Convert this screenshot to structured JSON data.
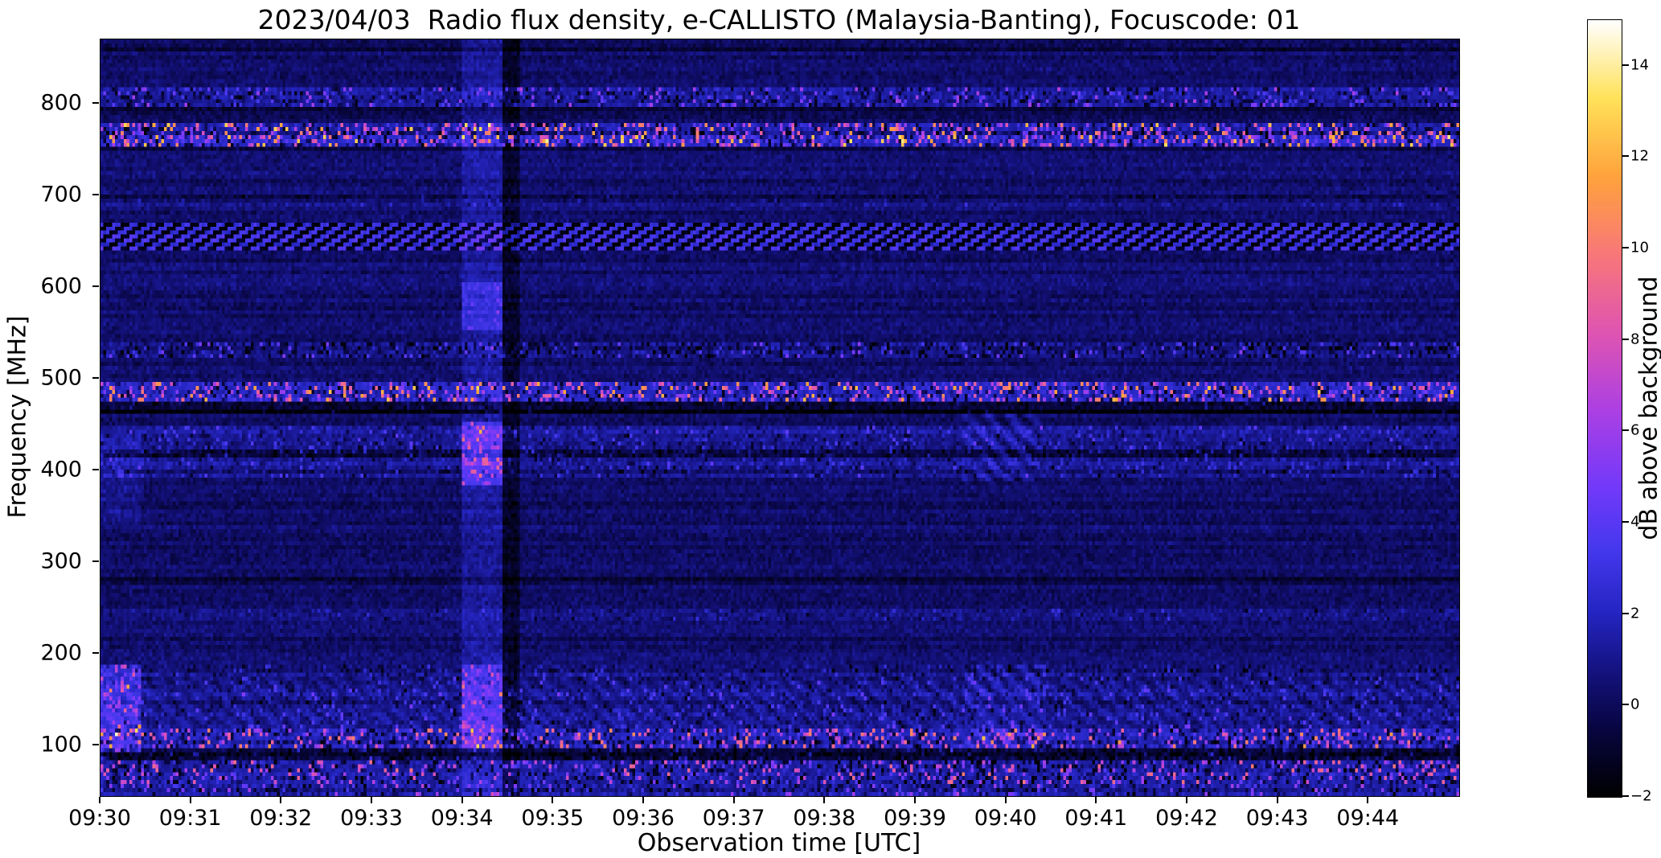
{
  "chart_data": {
    "type": "heatmap",
    "subtype": "radio-spectrogram",
    "title": "2023/04/03  Radio flux density, e-CALLISTO (Malaysia-Banting), Focuscode: 01",
    "x": {
      "label": "Observation time [UTC]",
      "start": "09:30",
      "end": "09:45",
      "span_minutes": 15,
      "tick_interval_minutes": 1,
      "ticks": [
        "09:30",
        "09:31",
        "09:32",
        "09:33",
        "09:34",
        "09:35",
        "09:36",
        "09:37",
        "09:38",
        "09:39",
        "09:40",
        "09:41",
        "09:42",
        "09:43",
        "09:44"
      ]
    },
    "y": {
      "label": "Frequency [MHz]",
      "min_mhz": 45,
      "max_mhz": 870,
      "ticks": [
        100,
        200,
        300,
        400,
        500,
        600,
        700,
        800
      ]
    },
    "color_scale": {
      "label": "dB above background",
      "min_db": -2,
      "max_db": 15,
      "tick_values": [
        14,
        12,
        10,
        8,
        6,
        4,
        2,
        0,
        -2
      ],
      "tick_labels": [
        "14",
        "12",
        "10",
        "8",
        "6",
        "4",
        "2",
        "0",
        "−2"
      ]
    },
    "colormap_stops": [
      {
        "pos": 0.0,
        "hex": "#000000"
      },
      {
        "pos": 0.09,
        "hex": "#080642"
      },
      {
        "pos": 0.16,
        "hex": "#14127d"
      },
      {
        "pos": 0.24,
        "hex": "#2526c4"
      },
      {
        "pos": 0.32,
        "hex": "#4638ee"
      },
      {
        "pos": 0.4,
        "hex": "#7339fa"
      },
      {
        "pos": 0.5,
        "hex": "#ad40e3"
      },
      {
        "pos": 0.6,
        "hex": "#e055b0"
      },
      {
        "pos": 0.7,
        "hex": "#f87878"
      },
      {
        "pos": 0.8,
        "hex": "#ffa33c"
      },
      {
        "pos": 0.9,
        "hex": "#ffe25a"
      },
      {
        "pos": 1.0,
        "hex": "#ffffff"
      }
    ],
    "noise": {
      "base_db": 0.3,
      "noise_db": 0.9,
      "row_jitter_db": 0.8,
      "dark_row_prob": 0.05,
      "dark_row_db": 0.9
    },
    "rfi_bands": [
      {
        "f_mhz": [
          795,
          816
        ],
        "base_db": 0.9,
        "spike_prob": 0.18,
        "spike_db": 5,
        "dip_prob": 0.28,
        "dip_db": 2.8,
        "style": "speckle"
      },
      {
        "f_mhz": [
          754,
          780
        ],
        "base_db": 1.8,
        "spike_prob": 0.3,
        "spike_db": 11,
        "dip_prob": 0.3,
        "dip_db": 3.6,
        "style": "speckle"
      },
      {
        "f_mhz": [
          686,
          700
        ],
        "base_db": 0.35,
        "spike_prob": 0.06,
        "spike_db": 1.5,
        "dip_prob": 0.12,
        "dip_db": 1.2,
        "style": "speckle"
      },
      {
        "f_mhz": [
          638,
          672
        ],
        "base_db": 0.5,
        "stripe_db": 2.3,
        "style": "diagonal"
      },
      {
        "f_mhz": [
          522,
          538
        ],
        "base_db": 0.6,
        "spike_prob": 0.15,
        "spike_db": 4,
        "dip_prob": 0.38,
        "dip_db": 3.0,
        "style": "speckle"
      },
      {
        "f_mhz": [
          476,
          497
        ],
        "base_db": 1.8,
        "spike_prob": 0.25,
        "spike_db": 10,
        "dip_prob": 0.3,
        "dip_db": 3.6,
        "style": "speckle"
      },
      {
        "f_mhz": [
          462,
          474
        ],
        "base_db": -1.0,
        "spike_prob": 0.06,
        "spike_db": 2,
        "dip_prob": 0.25,
        "dip_db": 1.5,
        "style": "speckle"
      },
      {
        "f_mhz": [
          392,
          448
        ],
        "base_db": 0.9,
        "spike_prob": 0.12,
        "spike_db": 2.5,
        "dip_prob": 0.15,
        "dip_db": 2.0,
        "style": "speckle"
      },
      {
        "f_mhz": [
          416,
          424
        ],
        "base_db": -1.6,
        "spike_prob": 0.05,
        "spike_db": 1,
        "dip_prob": 0.2,
        "dip_db": 1.0,
        "style": "speckle"
      },
      {
        "f_mhz": [
          234,
          248
        ],
        "base_db": 0.4,
        "spike_prob": 0.08,
        "spike_db": 1.6,
        "dip_prob": 0.15,
        "dip_db": 1.6,
        "style": "speckle"
      },
      {
        "f_mhz": [
          176,
          190
        ],
        "base_db": 0.5,
        "spike_prob": 0.1,
        "spike_db": 2.2,
        "dip_prob": 0.2,
        "dip_db": 2.0,
        "style": "speckle"
      },
      {
        "f_mhz": [
          120,
          176
        ],
        "base_db": 0.9,
        "spike_prob": 0.12,
        "spike_db": 3,
        "dip_prob": 0.15,
        "dip_db": 2.0,
        "style": "wave",
        "wave_db": 0.5
      },
      {
        "f_mhz": [
          96,
          120
        ],
        "base_db": 1.5,
        "spike_prob": 0.22,
        "spike_db": 9,
        "dip_prob": 0.35,
        "dip_db": 3.6,
        "style": "speckle"
      },
      {
        "f_mhz": [
          82,
          96
        ],
        "base_db": -0.8,
        "spike_prob": 0.1,
        "spike_db": 3,
        "dip_prob": 0.35,
        "dip_db": 2.0,
        "style": "speckle"
      },
      {
        "f_mhz": [
          58,
          82
        ],
        "base_db": 1.5,
        "spike_prob": 0.2,
        "spike_db": 8,
        "dip_prob": 0.3,
        "dip_db": 3.6,
        "style": "speckle"
      },
      {
        "f_mhz": [
          45,
          58
        ],
        "base_db": 1.1,
        "spike_prob": 0.15,
        "spike_db": 5,
        "dip_prob": 0.25,
        "dip_db": 3.0,
        "style": "speckle"
      }
    ],
    "events": [
      {
        "label": "broadband vertical enhancement ~09:34",
        "t_min": [
          4.0,
          4.45
        ],
        "f_mhz": [
          45,
          870
        ],
        "add_db": 1.0
      },
      {
        "label": "09:34 enhancement 385-455 MHz",
        "t_min": [
          4.0,
          4.45
        ],
        "f_mhz": [
          385,
          455
        ],
        "add_db": 2.2,
        "spike_prob": 0.25,
        "spike_db": 5
      },
      {
        "label": "09:34 enhancement 555-605 MHz",
        "t_min": [
          4.0,
          4.45
        ],
        "f_mhz": [
          555,
          605
        ],
        "add_db": 1.6,
        "spike_prob": 0.1,
        "spike_db": 2
      },
      {
        "label": "09:34 enhancement 96-190 MHz",
        "t_min": [
          4.0,
          4.45
        ],
        "f_mhz": [
          96,
          190
        ],
        "add_db": 1.8,
        "spike_prob": 0.2,
        "spike_db": 5
      },
      {
        "label": "dark column after 09:34 burst",
        "t_min": [
          4.45,
          4.62
        ],
        "f_mhz": [
          45,
          870
        ],
        "add_db": -1.3
      },
      {
        "label": "left-edge burst 92-190 MHz at 09:30",
        "t_min": [
          0,
          0.45
        ],
        "f_mhz": [
          92,
          190
        ],
        "add_db": 2.0,
        "spike_prob": 0.25,
        "spike_db": 6
      },
      {
        "label": "left-edge enhancement 340-440 MHz",
        "t_min": [
          0,
          0.45
        ],
        "f_mhz": [
          340,
          440
        ],
        "add_db": 0.7
      },
      {
        "label": "wavy enhancement 95-190 MHz 09:39-09:40",
        "t_min": [
          9.55,
          10.45
        ],
        "f_mhz": [
          95,
          190
        ],
        "add_db": 1.6,
        "wavy": true
      },
      {
        "label": "wavy enhancement 390-460 MHz 09:39-09:40",
        "t_min": [
          9.5,
          10.4
        ],
        "f_mhz": [
          390,
          460
        ],
        "add_db": 1.3,
        "wavy": true
      }
    ]
  }
}
